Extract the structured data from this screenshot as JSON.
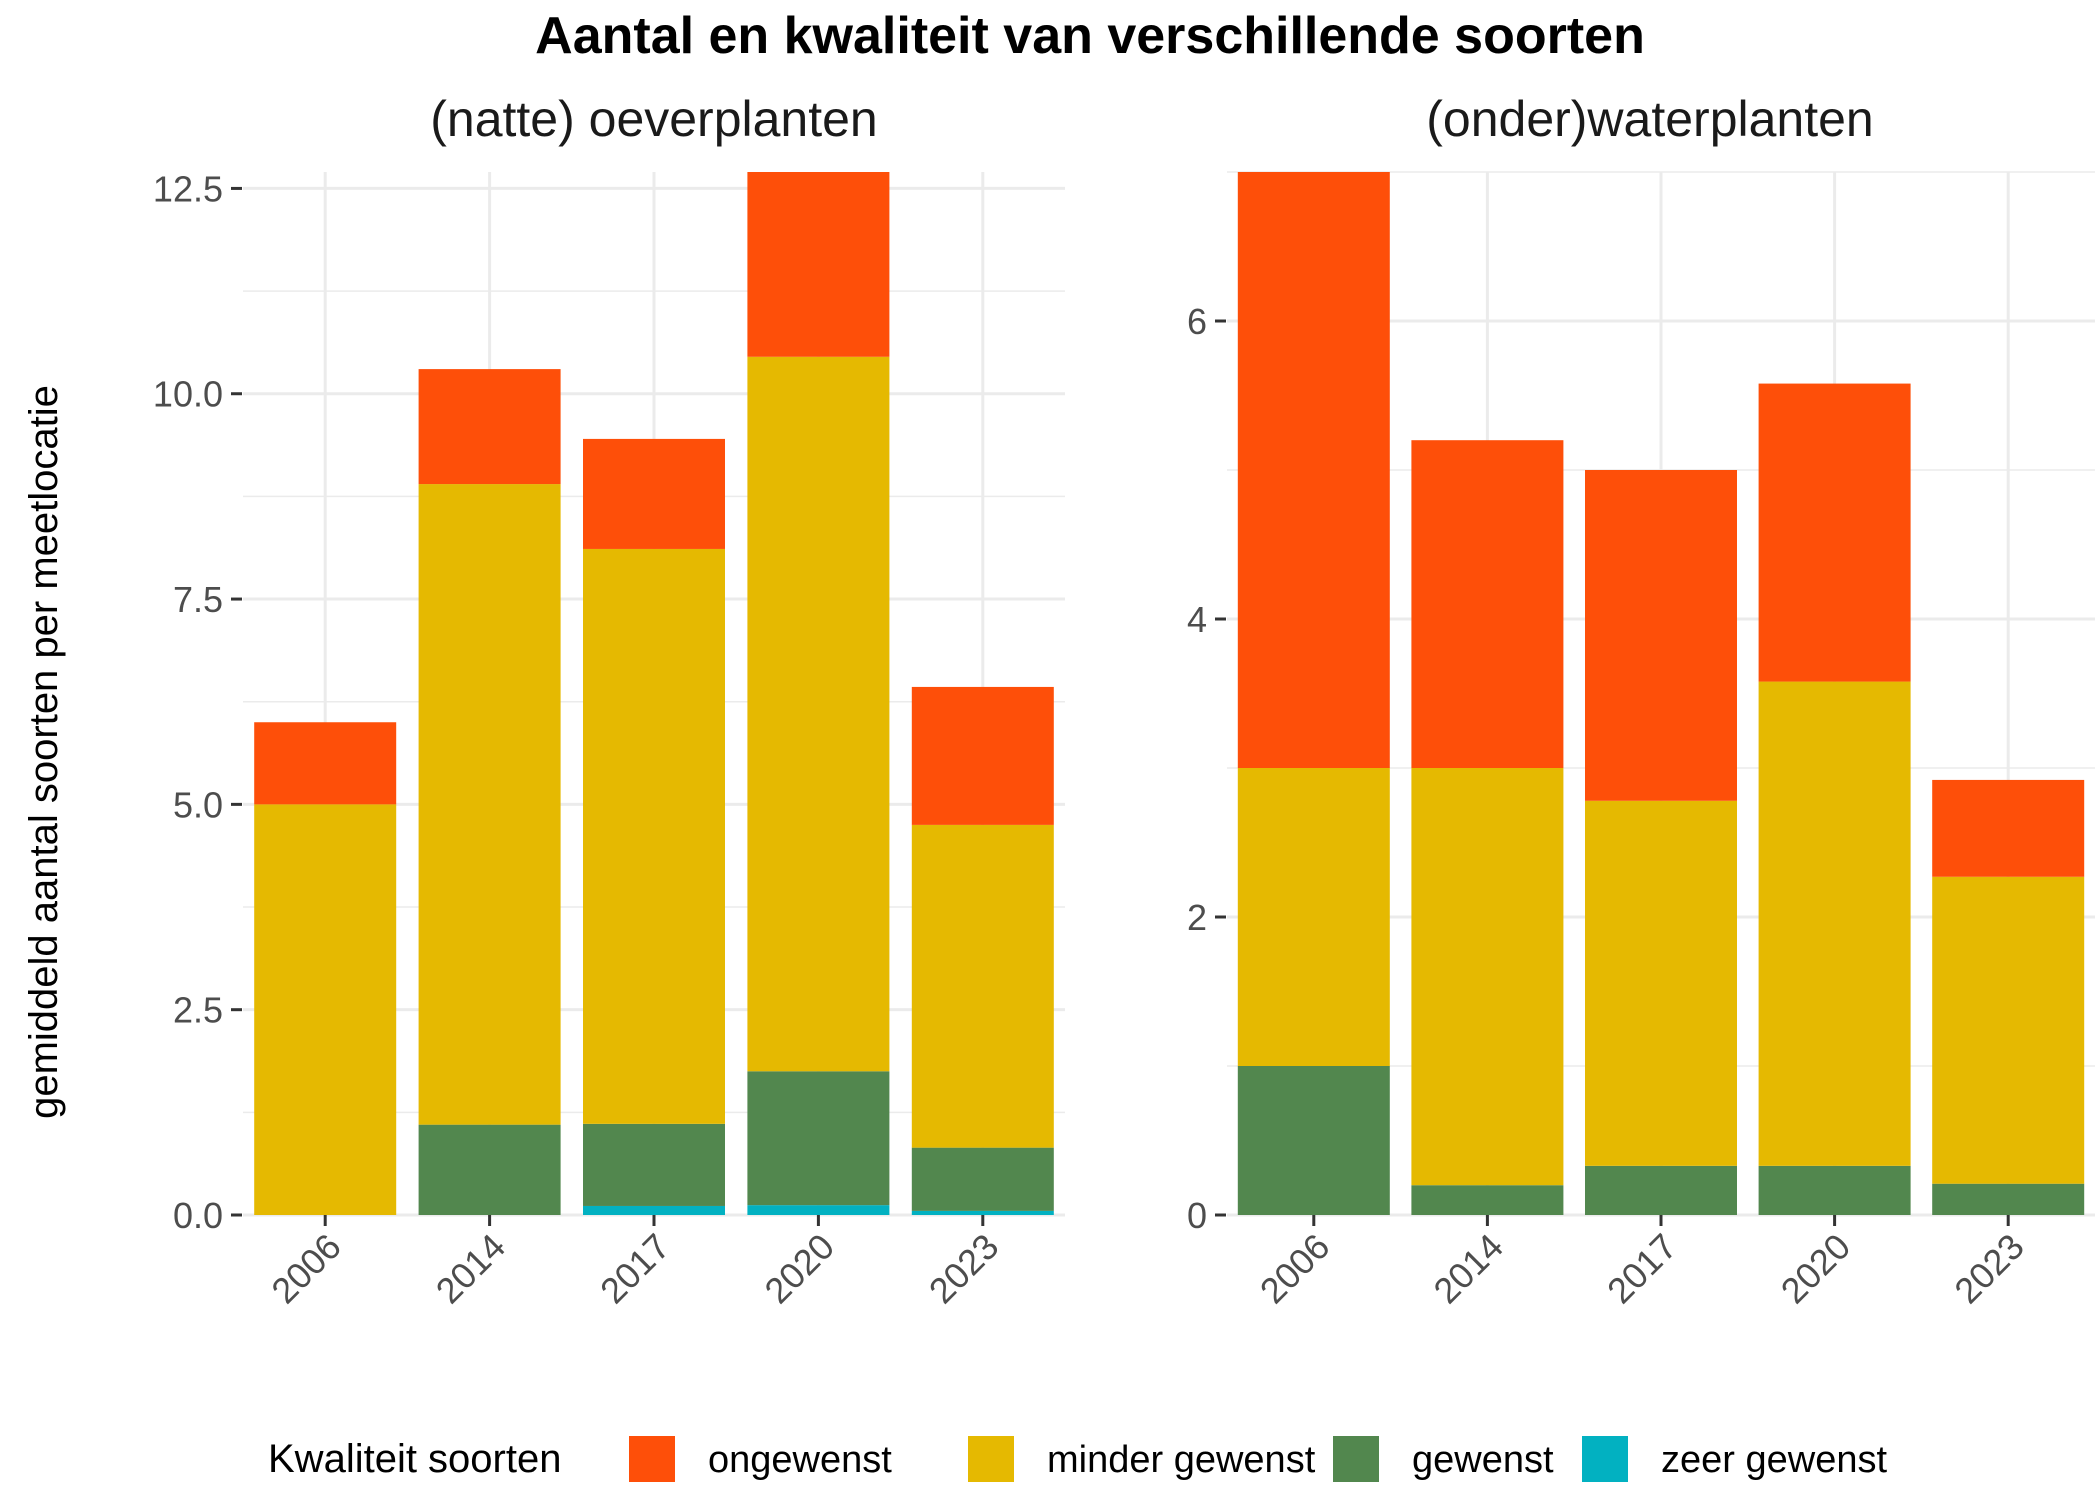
{
  "title": "Aantal en kwaliteit van verschillende soorten",
  "ylabel": "gemiddeld aantal soorten per meetlocatie",
  "colors": {
    "ongewenst": "#fe4f09",
    "minder gewenst": "#e5b901",
    "gewenst": "#52874e",
    "zeer gewenst": "#02b1c1"
  },
  "legend": {
    "title": "Kwaliteit soorten",
    "position": "bottom",
    "entries": [
      "ongewenst",
      "minder gewenst",
      "gewenst",
      "zeer gewenst"
    ]
  },
  "chart_data": [
    {
      "type": "bar",
      "stacked": true,
      "title": "(natte) oeverplanten",
      "categories": [
        "2006",
        "2014",
        "2017",
        "2020",
        "2023"
      ],
      "ylim": [
        0,
        12.7
      ],
      "yticks": [
        0,
        2.5,
        5,
        7.5,
        10,
        12.5
      ],
      "ytick_labels": [
        "0.0",
        "2.5",
        "5.0",
        "7.5",
        "10.0",
        "12.5"
      ],
      "grid": true,
      "series": [
        {
          "name": "zeer gewenst",
          "values": [
            0,
            0,
            0.11,
            0.12,
            0.05
          ]
        },
        {
          "name": "gewenst",
          "values": [
            0,
            1.1,
            1.0,
            1.63,
            0.77
          ]
        },
        {
          "name": "minder gewenst",
          "values": [
            5.0,
            7.8,
            7.0,
            8.7,
            3.93
          ]
        },
        {
          "name": "ongewenst",
          "values": [
            1.0,
            1.4,
            1.34,
            2.25,
            1.68
          ]
        }
      ]
    },
    {
      "type": "bar",
      "stacked": true,
      "title": "(onder)waterplanten",
      "categories": [
        "2006",
        "2014",
        "2017",
        "2020",
        "2023"
      ],
      "ylim": [
        0,
        7.0
      ],
      "yticks": [
        0,
        2,
        4,
        6
      ],
      "ytick_labels": [
        "0",
        "2",
        "4",
        "6"
      ],
      "grid": true,
      "series": [
        {
          "name": "zeer gewenst",
          "values": [
            0,
            0,
            0,
            0,
            0
          ]
        },
        {
          "name": "gewenst",
          "values": [
            1.0,
            0.2,
            0.33,
            0.33,
            0.21
          ]
        },
        {
          "name": "minder gewenst",
          "values": [
            2.0,
            2.8,
            2.45,
            3.25,
            2.06
          ]
        },
        {
          "name": "ongewenst",
          "values": [
            4.0,
            2.2,
            2.22,
            2.0,
            0.65
          ]
        }
      ]
    }
  ]
}
